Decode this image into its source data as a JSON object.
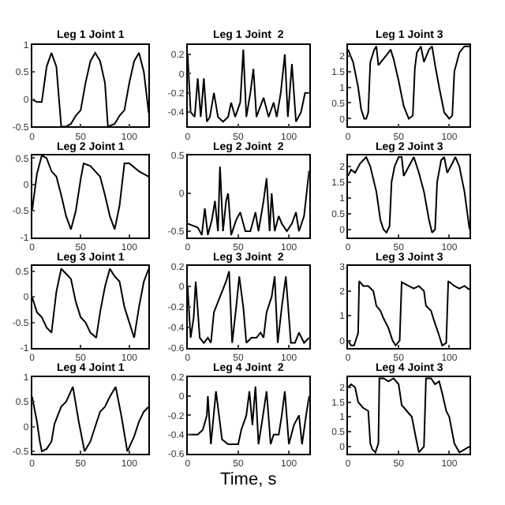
{
  "chart_data": [
    {
      "type": "line",
      "title": "Leg 1 Joint 1",
      "xlim": [
        0,
        120
      ],
      "xticks": [
        0,
        50,
        100
      ],
      "ylim": [
        -0.5,
        1
      ],
      "yticks": [
        -0.5,
        0,
        0.5,
        1
      ],
      "x": [
        0,
        5,
        10,
        15,
        20,
        25,
        30,
        35,
        40,
        45,
        50,
        55,
        60,
        65,
        70,
        75,
        78,
        85,
        90,
        95,
        100,
        105,
        110,
        115,
        120
      ],
      "series": [
        {
          "color": "#000000",
          "values": [
            0,
            -0.05,
            -0.05,
            0.6,
            0.85,
            0.6,
            -0.5,
            -0.5,
            -0.45,
            -0.3,
            -0.2,
            0.3,
            0.7,
            0.85,
            0.7,
            0.3,
            -0.5,
            -0.45,
            -0.3,
            -0.2,
            0.3,
            0.7,
            0.85,
            0.5,
            -0.25
          ]
        }
      ]
    },
    {
      "type": "line",
      "title": "Leg 1 Joint  2",
      "xlim": [
        0,
        120
      ],
      "xticks": [
        0,
        50,
        100
      ],
      "ylim": [
        -0.55,
        0.3
      ],
      "yticks": [
        -0.4,
        -0.2,
        0,
        0.2
      ],
      "x": [
        0,
        3,
        7,
        10,
        13,
        16,
        19,
        22,
        26,
        30,
        35,
        40,
        43,
        47,
        52,
        55,
        58,
        62,
        65,
        68,
        75,
        80,
        85,
        88,
        92,
        96,
        99,
        103,
        107,
        112,
        116,
        120
      ],
      "series": [
        {
          "color": "#000000",
          "values": [
            0.2,
            -0.4,
            -0.45,
            -0.05,
            -0.45,
            -0.05,
            -0.5,
            -0.45,
            -0.2,
            -0.45,
            -0.5,
            -0.45,
            -0.3,
            -0.45,
            -0.3,
            0.25,
            -0.45,
            -0.2,
            0.05,
            -0.45,
            -0.25,
            -0.45,
            -0.3,
            -0.45,
            -0.2,
            0.2,
            -0.45,
            0.1,
            -0.5,
            -0.4,
            -0.2,
            -0.2
          ]
        }
      ]
    },
    {
      "type": "line",
      "title": "Leg 1 Joint 3",
      "xlim": [
        0,
        120
      ],
      "xticks": [
        0,
        50,
        100
      ],
      "ylim": [
        -0.25,
        2.35
      ],
      "yticks": [
        0,
        0.5,
        1,
        1.5,
        2
      ],
      "x": [
        0,
        5,
        10,
        13,
        16,
        18,
        20,
        22,
        26,
        28,
        30,
        35,
        40,
        42,
        45,
        50,
        55,
        60,
        64,
        66,
        68,
        72,
        75,
        80,
        83,
        86,
        90,
        95,
        100,
        103,
        105,
        110,
        115,
        120
      ],
      "series": [
        {
          "color": "#000000",
          "values": [
            2.2,
            1.8,
            1.0,
            0.3,
            0,
            0,
            0.2,
            1.8,
            2.2,
            2.3,
            1.7,
            1.9,
            2.1,
            2.2,
            1.9,
            1.2,
            0.4,
            0,
            0.1,
            1.6,
            2.1,
            2.3,
            1.8,
            2.2,
            2.3,
            1.7,
            1.0,
            0.2,
            0,
            0.1,
            1.5,
            2.1,
            2.3,
            2.3
          ]
        }
      ]
    },
    {
      "type": "line",
      "title": "Leg 2 Joint 1",
      "xlim": [
        0,
        120
      ],
      "xticks": [
        0,
        50,
        100
      ],
      "ylim": [
        -1,
        0.55
      ],
      "yticks": [
        -1,
        -0.5,
        0,
        0.5
      ],
      "x": [
        0,
        5,
        10,
        15,
        20,
        25,
        30,
        35,
        40,
        45,
        50,
        53,
        60,
        65,
        70,
        75,
        80,
        85,
        90,
        95,
        100,
        110,
        120
      ],
      "series": [
        {
          "color": "#000000",
          "values": [
            -0.5,
            0.2,
            0.55,
            0.5,
            0.25,
            0.15,
            -0.2,
            -0.6,
            -0.85,
            -0.5,
            0.1,
            0.4,
            0.35,
            0.25,
            0.15,
            -0.2,
            -0.6,
            -0.85,
            -0.4,
            0.4,
            0.4,
            0.25,
            0.15
          ]
        }
      ]
    },
    {
      "type": "line",
      "title": "Leg 2 Joint  2",
      "xlim": [
        0,
        120
      ],
      "xticks": [
        0,
        50,
        100
      ],
      "ylim": [
        -0.58,
        0.5
      ],
      "yticks": [
        -0.5,
        0,
        0.5
      ],
      "x": [
        0,
        10,
        14,
        17,
        20,
        24,
        27,
        30,
        32,
        35,
        38,
        40,
        43,
        48,
        52,
        57,
        62,
        67,
        70,
        75,
        78,
        81,
        83,
        86,
        90,
        93,
        98,
        103,
        107,
        110,
        115,
        120
      ],
      "series": [
        {
          "color": "#000000",
          "values": [
            -0.4,
            -0.45,
            -0.55,
            -0.2,
            -0.55,
            -0.35,
            -0.1,
            -0.5,
            0.35,
            -0.5,
            -0.1,
            0.0,
            -0.55,
            -0.35,
            -0.25,
            -0.5,
            -0.5,
            -0.25,
            -0.5,
            -0.1,
            0.2,
            -0.5,
            0.0,
            -0.5,
            -0.3,
            -0.4,
            -0.5,
            -0.4,
            -0.25,
            -0.5,
            -0.3,
            0.3
          ]
        }
      ]
    },
    {
      "type": "line",
      "title": "Leg 2 Joint 3",
      "xlim": [
        0,
        120
      ],
      "xticks": [
        0,
        50,
        100
      ],
      "ylim": [
        -0.25,
        2.35
      ],
      "yticks": [
        0,
        0.5,
        1,
        1.5,
        2
      ],
      "x": [
        0,
        3,
        7,
        12,
        18,
        22,
        28,
        32,
        35,
        38,
        41,
        43,
        46,
        50,
        53,
        55,
        60,
        65,
        70,
        75,
        80,
        83,
        86,
        88,
        92,
        95,
        98,
        103,
        106,
        110,
        115,
        120
      ],
      "series": [
        {
          "color": "#000000",
          "values": [
            1.7,
            1.9,
            1.8,
            2.1,
            2.3,
            2.0,
            1.2,
            0.3,
            0.0,
            -0.1,
            0.1,
            1.5,
            2.0,
            2.3,
            2.3,
            1.7,
            2.0,
            2.3,
            1.8,
            1.2,
            0.3,
            -0.1,
            0.0,
            1.5,
            2.2,
            2.3,
            1.8,
            2.1,
            2.3,
            2.0,
            1.2,
            0
          ]
        }
      ]
    },
    {
      "type": "line",
      "title": "Leg 3 Joint 1",
      "xlim": [
        0,
        120
      ],
      "xticks": [
        0,
        50,
        100
      ],
      "ylim": [
        -1,
        0.6
      ],
      "yticks": [
        -1,
        -0.5,
        0,
        0.5
      ],
      "x": [
        0,
        5,
        10,
        15,
        20,
        25,
        30,
        35,
        40,
        45,
        50,
        55,
        60,
        66,
        70,
        75,
        80,
        85,
        90,
        95,
        100,
        105,
        110,
        115,
        120
      ],
      "series": [
        {
          "color": "#000000",
          "values": [
            0,
            -0.3,
            -0.4,
            -0.6,
            -0.7,
            0.1,
            0.55,
            0.45,
            0.35,
            -0.1,
            -0.4,
            -0.5,
            -0.7,
            -0.8,
            -0.3,
            0.2,
            0.55,
            0.4,
            0.3,
            -0.2,
            -0.5,
            -0.8,
            -0.2,
            0.3,
            0.55
          ]
        }
      ]
    },
    {
      "type": "line",
      "title": "Leg 3 Joint  2",
      "xlim": [
        0,
        120
      ],
      "xticks": [
        0,
        50,
        100
      ],
      "ylim": [
        -0.6,
        0.2
      ],
      "yticks": [
        -0.6,
        -0.4,
        -0.2,
        0,
        0.2
      ],
      "x": [
        0,
        3,
        6,
        8,
        12,
        16,
        20,
        23,
        26,
        32,
        38,
        41,
        44,
        48,
        51,
        55,
        58,
        63,
        68,
        72,
        75,
        78,
        83,
        86,
        89,
        93,
        97,
        102,
        106,
        110,
        115,
        120
      ],
      "series": [
        {
          "color": "#000000",
          "values": [
            0,
            -0.5,
            -0.3,
            0.05,
            -0.5,
            -0.55,
            -0.5,
            -0.55,
            -0.25,
            -0.1,
            0.05,
            0.15,
            -0.55,
            -0.2,
            0.1,
            -0.2,
            -0.55,
            -0.5,
            -0.5,
            -0.45,
            -0.5,
            -0.25,
            -0.1,
            0.1,
            -0.55,
            -0.2,
            0.1,
            -0.55,
            -0.55,
            -0.45,
            -0.55,
            -0.5
          ]
        }
      ]
    },
    {
      "type": "line",
      "title": "Leg 3 Joint 3",
      "xlim": [
        0,
        120
      ],
      "xticks": [
        0,
        50,
        100
      ],
      "ylim": [
        -0.3,
        3
      ],
      "yticks": [
        0,
        1,
        2,
        3
      ],
      "x": [
        0,
        3,
        6,
        10,
        11,
        15,
        20,
        25,
        28,
        32,
        35,
        40,
        44,
        47,
        51,
        53,
        60,
        65,
        70,
        75,
        77,
        82,
        85,
        90,
        93,
        97,
        99,
        105,
        110,
        115,
        120
      ],
      "series": [
        {
          "color": "#000000",
          "values": [
            0,
            -0.2,
            -0.2,
            0.3,
            2.4,
            2.2,
            2.2,
            2.0,
            1.4,
            1.2,
            0.9,
            0.5,
            0,
            -0.2,
            0,
            2.35,
            2.2,
            2.1,
            2.2,
            2.0,
            1.4,
            1.2,
            0.8,
            0.2,
            -0.2,
            -0.1,
            2.4,
            2.2,
            2.1,
            2.2,
            2.05
          ]
        }
      ]
    },
    {
      "type": "line",
      "title": "Leg 4 Joint 1",
      "xlim": [
        0,
        120
      ],
      "xticks": [
        0,
        50,
        100
      ],
      "ylim": [
        -0.55,
        1
      ],
      "yticks": [
        -0.5,
        0,
        0.5,
        1
      ],
      "x": [
        0,
        5,
        8,
        10,
        15,
        20,
        23,
        26,
        30,
        35,
        42,
        48,
        54,
        60,
        65,
        70,
        75,
        80,
        86,
        92,
        98,
        105,
        110,
        115,
        120
      ],
      "series": [
        {
          "color": "#000000",
          "values": [
            0.6,
            0.1,
            -0.3,
            -0.5,
            -0.45,
            -0.3,
            0.05,
            0.2,
            0.4,
            0.5,
            0.8,
            0.1,
            -0.5,
            -0.3,
            0.0,
            0.3,
            0.4,
            0.6,
            0.8,
            0.2,
            -0.5,
            -0.2,
            0.1,
            0.3,
            0.4
          ]
        }
      ]
    },
    {
      "type": "line",
      "title": "Leg 4 Joint  2",
      "xlabel": "Time, s",
      "xlim": [
        0,
        120
      ],
      "xticks": [
        0,
        50,
        100
      ],
      "ylim": [
        -0.6,
        0.2
      ],
      "yticks": [
        -0.6,
        -0.4,
        -0.2,
        0,
        0.2
      ],
      "x": [
        0,
        10,
        15,
        19,
        20,
        23,
        28,
        31,
        34,
        40,
        45,
        50,
        53,
        58,
        61,
        64,
        67,
        70,
        73,
        78,
        82,
        85,
        90,
        93,
        96,
        100,
        105,
        110,
        113,
        117,
        120
      ],
      "series": [
        {
          "color": "#000000",
          "values": [
            -0.4,
            -0.4,
            -0.35,
            -0.2,
            0.0,
            -0.5,
            0.05,
            -0.2,
            -0.45,
            -0.5,
            -0.5,
            -0.5,
            -0.35,
            -0.2,
            0.05,
            -0.3,
            0.1,
            -0.5,
            -0.3,
            0.05,
            -0.5,
            -0.4,
            -0.4,
            -0.2,
            0.05,
            -0.5,
            -0.3,
            -0.2,
            -0.5,
            -0.2,
            0
          ]
        }
      ]
    },
    {
      "type": "line",
      "title": "Leg 4 Joint 3",
      "xlim": [
        0,
        120
      ],
      "xticks": [
        0,
        50,
        100
      ],
      "ylim": [
        -0.25,
        2.35
      ],
      "yticks": [
        0,
        0.5,
        1,
        1.5,
        2
      ],
      "x": [
        0,
        3,
        7,
        10,
        15,
        20,
        22,
        24,
        27,
        30,
        31,
        35,
        40,
        45,
        50,
        53,
        58,
        63,
        67,
        70,
        75,
        77,
        82,
        86,
        90,
        93,
        97,
        100,
        105,
        110,
        115,
        120
      ],
      "series": [
        {
          "color": "#000000",
          "values": [
            2.0,
            2.1,
            2.0,
            1.5,
            1.3,
            1.2,
            0.1,
            -0.1,
            -0.2,
            0.1,
            2.3,
            2.3,
            2.2,
            2.3,
            2.1,
            1.4,
            1.2,
            1.0,
            0.3,
            -0.2,
            0,
            2.3,
            2.3,
            2.1,
            2.2,
            1.8,
            1.2,
            1.0,
            0.1,
            -0.2,
            -0.1,
            0
          ]
        }
      ]
    }
  ]
}
